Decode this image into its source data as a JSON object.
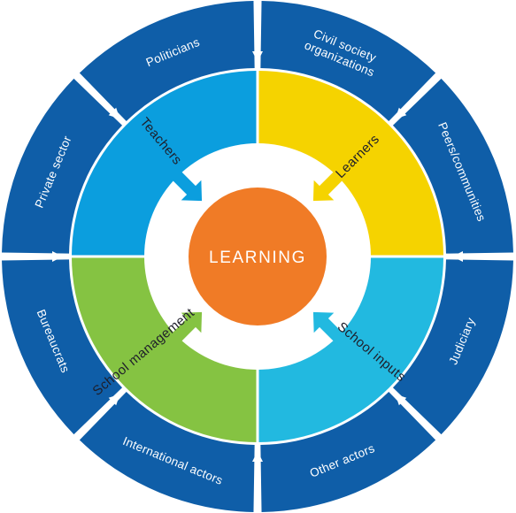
{
  "center": {
    "label": "LEARNING"
  },
  "inner_quadrants": [
    {
      "label": "Teachers",
      "color": "#0b9ede"
    },
    {
      "label": "Learners",
      "color": "#f5d300"
    },
    {
      "label": "School inputs",
      "color": "#22b9e0"
    },
    {
      "label": "School management",
      "color": "#85c342"
    }
  ],
  "outer_ring": {
    "color": "#0f5ea8",
    "segments": [
      {
        "label_lines": [
          "Politicians"
        ]
      },
      {
        "label_lines": [
          "Civil society",
          "organizations"
        ]
      },
      {
        "label_lines": [
          "Peers/communities"
        ]
      },
      {
        "label_lines": [
          "Judiciary"
        ]
      },
      {
        "label_lines": [
          "Other actors"
        ]
      },
      {
        "label_lines": [
          "International actors"
        ]
      },
      {
        "label_lines": [
          "Bureaucrats"
        ]
      },
      {
        "label_lines": [
          "Private sector"
        ]
      }
    ]
  },
  "colors": {
    "center": "#f07b26",
    "arrow_outer": "#ffffff"
  }
}
